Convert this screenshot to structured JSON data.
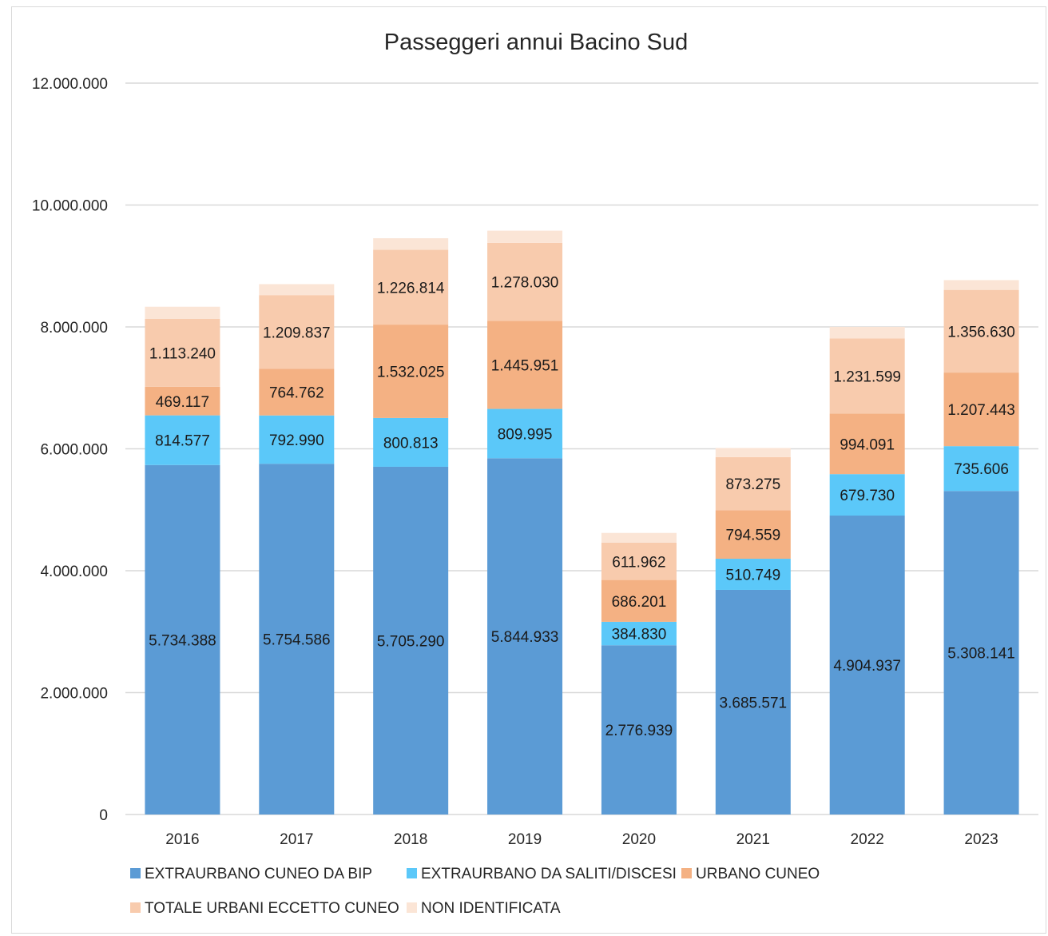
{
  "chart_data": {
    "type": "bar",
    "stacked": true,
    "title": "Passeggeri annui Bacino Sud",
    "categories": [
      "2016",
      "2017",
      "2018",
      "2019",
      "2020",
      "2021",
      "2022",
      "2023"
    ],
    "y_ticks": [
      "0",
      "2.000.000",
      "4.000.000",
      "6.000.000",
      "8.000.000",
      "10.000.000",
      "12.000.000"
    ],
    "ylim": [
      0,
      12000000
    ],
    "grid": true,
    "legend_position": "bottom",
    "series": [
      {
        "name": "EXTRAURBANO CUNEO DA BIP",
        "color": "#5b9bd5",
        "values": [
          5734388,
          5754586,
          5705290,
          5844933,
          2776939,
          3685571,
          4904937,
          5308141
        ],
        "labels": [
          "5.734.388",
          "5.754.586",
          "5.705.290",
          "5.844.933",
          "2.776.939",
          "3.685.571",
          "4.904.937",
          "5.308.141"
        ]
      },
      {
        "name": "EXTRAURBANO DA SALITI/DISCESI",
        "color": "#5bc8f9",
        "values": [
          814577,
          792990,
          800813,
          809995,
          384830,
          510749,
          679730,
          735606
        ],
        "labels": [
          "814.577",
          "792.990",
          "800.813",
          "809.995",
          "384.830",
          "510.749",
          "679.730",
          "735.606"
        ]
      },
      {
        "name": "URBANO CUNEO",
        "color": "#f4b183",
        "values": [
          469117,
          764762,
          1532025,
          1445951,
          686201,
          794559,
          994091,
          1207443
        ],
        "labels": [
          "469.117",
          "764.762",
          "1.532.025",
          "1.445.951",
          "686.201",
          "794.559",
          "994.091",
          "1.207.443"
        ]
      },
      {
        "name": "TOTALE URBANI ECCETTO CUNEO",
        "color": "#f8cbad",
        "values": [
          1113240,
          1209837,
          1226814,
          1278030,
          611962,
          873275,
          1231599,
          1356630
        ],
        "labels": [
          "1.113.240",
          "1.209.837",
          "1.226.814",
          "1.278.030",
          "611.962",
          "873.275",
          "1.231.599",
          "1.356.630"
        ]
      },
      {
        "name": "NON IDENTIFICATA",
        "color": "#fbe5d6",
        "values": [
          200000,
          180000,
          190000,
          200000,
          160000,
          150000,
          190000,
          160000
        ],
        "labels": []
      }
    ]
  }
}
